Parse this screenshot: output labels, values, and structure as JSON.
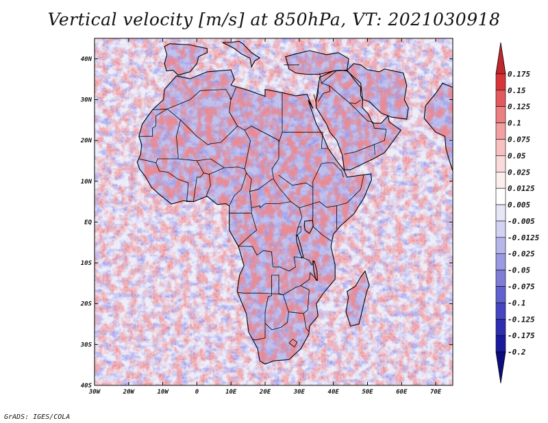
{
  "title": "Vertical velocity [m/s] at 850hPa, VT: 2021030918",
  "credit": "GrADS: IGES/COLA",
  "map": {
    "region": "Africa",
    "lon_range": [
      -30,
      75
    ],
    "lat_range": [
      -40,
      45
    ],
    "lat_ticks": [
      "40N",
      "30N",
      "20N",
      "10N",
      "EQ",
      "10S",
      "20S",
      "30S",
      "40S"
    ],
    "lon_ticks": [
      "30W",
      "20W",
      "10W",
      "0",
      "10E",
      "20E",
      "30E",
      "40E",
      "50E",
      "60E",
      "70E"
    ],
    "field": "vertical velocity",
    "field_units": "m/s",
    "level": "850hPa"
  },
  "colorbar": {
    "labels": [
      "0.175",
      "0.15",
      "0.125",
      "0.1",
      "0.075",
      "0.05",
      "0.025",
      "0.0125",
      "0.005",
      "-0.005",
      "-0.0125",
      "-0.025",
      "-0.05",
      "-0.075",
      "-0.1",
      "-0.125",
      "-0.175",
      "-0.2"
    ],
    "colors": [
      "#c1272d",
      "#d7353a",
      "#e35a5e",
      "#ec7f82",
      "#f2a0a2",
      "#f7c0c1",
      "#fadadb",
      "#fdeeee",
      "#ffffff",
      "#e6e6f7",
      "#d2d2f2",
      "#b6b6eb",
      "#9a9ae2",
      "#7e7ed8",
      "#6262ce",
      "#4646c2",
      "#2e2eb0",
      "#1a1a9c",
      "#0d0d80"
    ]
  },
  "colors": {
    "positive": "#d64045",
    "negative": "#5a5ad6",
    "background": "#e8e8f8",
    "coast": "#000000"
  }
}
